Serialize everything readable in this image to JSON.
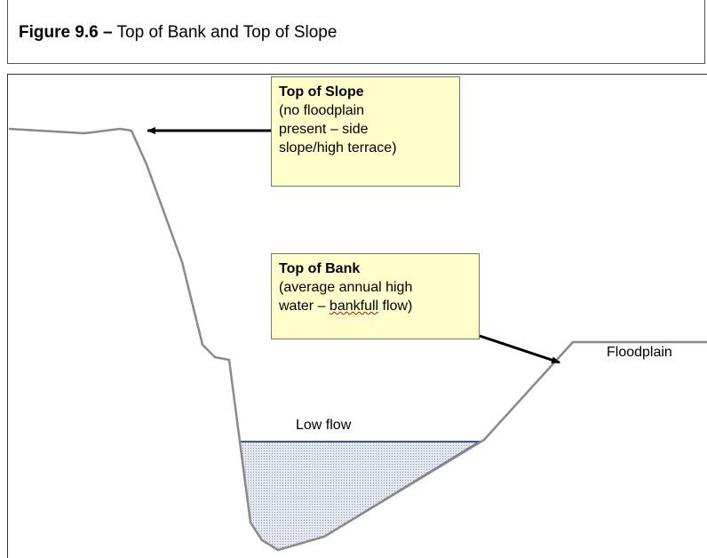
{
  "header": {
    "title_bold": "Figure 9.6 –",
    "title_rest": "Top of Bank and Top of Slope"
  },
  "callouts": [
    {
      "title": "Top of Slope",
      "lines": [
        "(no floodplain",
        "present – side",
        "slope/high terrace)"
      ]
    },
    {
      "title": "Top of Bank",
      "lines": [
        "(average annual high",
        "water – ",
        "bankfull",
        " flow)"
      ]
    }
  ],
  "labels": {
    "floodplain": "Floodplain",
    "low_flow": "Low flow"
  }
}
